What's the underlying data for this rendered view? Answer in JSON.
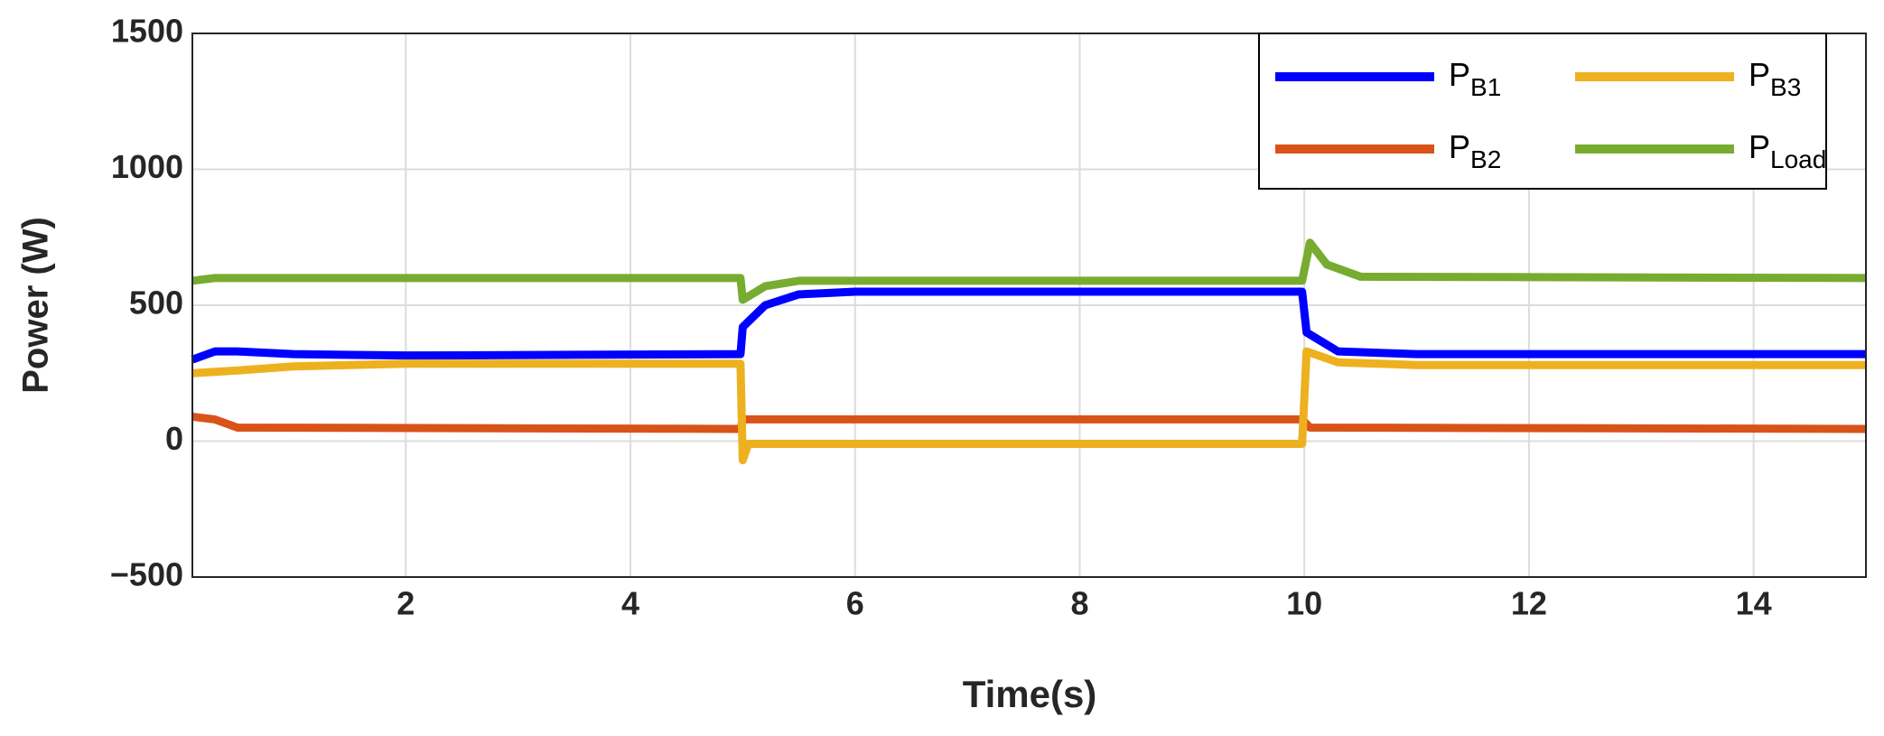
{
  "chart_data": {
    "type": "line",
    "xlabel": "Time(s)",
    "ylabel": "Power (W)",
    "xlim": [
      0.1,
      15
    ],
    "ylim": [
      -500,
      1500
    ],
    "xticks": [
      2,
      4,
      6,
      8,
      10,
      12,
      14
    ],
    "yticks": [
      {
        "value": -500,
        "label": "−500"
      },
      0,
      500,
      1000,
      1500
    ],
    "grid": true,
    "legend_position": "upper right",
    "series": [
      {
        "name": "PB1",
        "color": "#0000ff",
        "x": [
          0.1,
          0.3,
          0.5,
          1,
          2,
          4.98,
          5.0,
          5.2,
          5.5,
          6,
          9.98,
          10.02,
          10.3,
          11,
          15
        ],
        "values": [
          300,
          330,
          330,
          320,
          315,
          320,
          420,
          500,
          540,
          550,
          550,
          400,
          330,
          320,
          320
        ]
      },
      {
        "name": "PB2",
        "color": "#d95319",
        "x": [
          0.1,
          0.3,
          0.5,
          4.98,
          5.0,
          9.98,
          10.05,
          15
        ],
        "values": [
          90,
          80,
          50,
          45,
          80,
          80,
          50,
          45
        ]
      },
      {
        "name": "PB3",
        "color": "#edb120",
        "x": [
          0.1,
          0.5,
          1,
          2,
          4.98,
          5.0,
          5.05,
          9.98,
          10.02,
          10.3,
          11,
          15
        ],
        "values": [
          250,
          260,
          275,
          285,
          285,
          -70,
          -10,
          -10,
          330,
          290,
          280,
          280
        ]
      },
      {
        "name": "PLoad",
        "color": "#77ac30",
        "x": [
          0.1,
          0.3,
          4.98,
          5.0,
          5.2,
          5.5,
          9.98,
          10.05,
          10.2,
          10.5,
          15
        ],
        "values": [
          590,
          600,
          600,
          520,
          570,
          590,
          590,
          730,
          650,
          605,
          600
        ]
      }
    ]
  }
}
